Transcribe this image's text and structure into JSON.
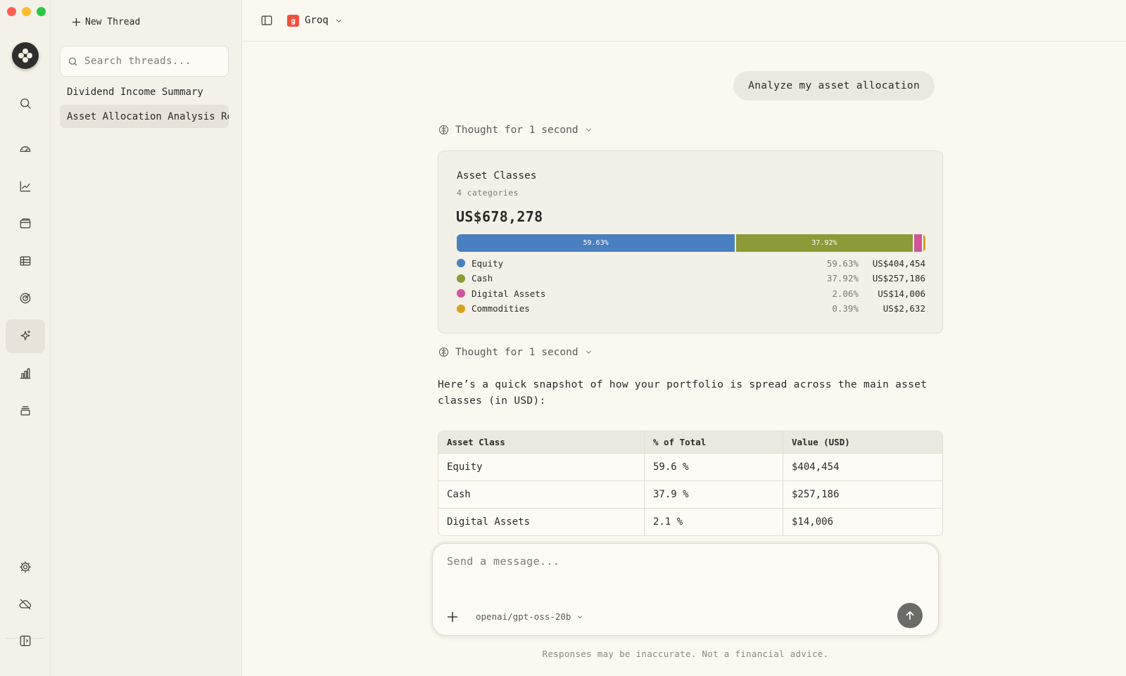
{
  "sidebar": {
    "new_thread_label": "New Thread",
    "search_placeholder": "Search threads...",
    "threads": [
      {
        "label": "Dividend Income Summary",
        "active": false
      },
      {
        "label": "Asset Allocation Analysis Re...",
        "active": true
      }
    ]
  },
  "rail": {
    "icons": [
      "search-icon",
      "dashboard-icon",
      "chart-line-icon",
      "wallet-icon",
      "list-icon",
      "target-icon",
      "sparkles-icon",
      "bar-chart-icon",
      "layers-icon",
      "settings-icon",
      "cloud-off-icon",
      "sidebar-expand-icon"
    ],
    "active": "sparkles-icon"
  },
  "topbar": {
    "provider_badge": "g",
    "provider_name": "Groq"
  },
  "conversation": {
    "user_message": "Analyze my asset allocation",
    "thought_label_1": "Thought for 1 second",
    "thought_label_2": "Thought for 1 second",
    "answer_text": "Here’s a quick snapshot of how your portfolio is spread across the main asset classes (in USD):"
  },
  "allocation_card": {
    "title": "Asset Classes",
    "subtitle": "4 categories",
    "total": "US$678,278",
    "items": [
      {
        "name": "Equity",
        "pct": "59.63%",
        "value": "US$404,454",
        "share": 59.63,
        "color": "#4a80c0",
        "bar_label": "59.63%"
      },
      {
        "name": "Cash",
        "pct": "37.92%",
        "value": "US$257,186",
        "share": 37.92,
        "color": "#8d9a38",
        "bar_label": "37.92%"
      },
      {
        "name": "Digital Assets",
        "pct": "2.06%",
        "value": "US$14,006",
        "share": 2.06,
        "color": "#d0559a",
        "bar_label": ""
      },
      {
        "name": "Commodities",
        "pct": "0.39%",
        "value": "US$2,632",
        "share": 0.39,
        "color": "#d6a020",
        "bar_label": ""
      }
    ]
  },
  "table": {
    "headers": [
      "Asset Class",
      "% of Total",
      "Value (USD)"
    ],
    "rows": [
      [
        "Equity",
        "59.6 %",
        "$404,454"
      ],
      [
        "Cash",
        "37.9 %",
        "$257,186"
      ],
      [
        "Digital Assets",
        "2.1 %",
        "$14,006"
      ]
    ]
  },
  "composer": {
    "placeholder": "Send a message...",
    "model": "openai/gpt-oss-20b",
    "disclaimer": "Responses may be inaccurate. Not a financial advice."
  }
}
